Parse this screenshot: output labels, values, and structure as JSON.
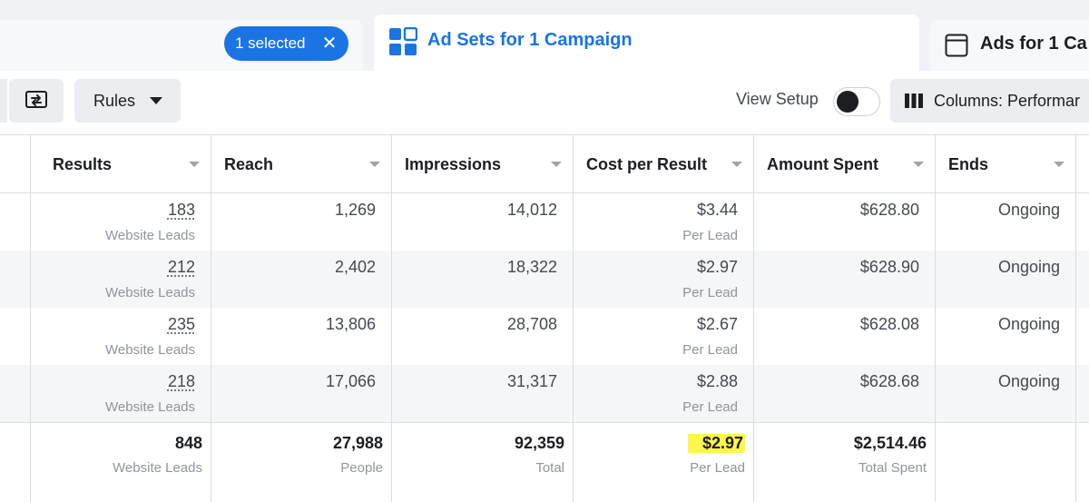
{
  "tabs": {
    "campaigns": {
      "selected_label": "1 selected"
    },
    "ad_sets": {
      "label": "Ad Sets for 1 Campaign"
    },
    "ads": {
      "label": "Ads for 1 Ca"
    }
  },
  "toolbar": {
    "rules_label": "Rules",
    "view_setup_label": "View Setup",
    "view_setup_on": false,
    "columns_label": "Columns: Performar"
  },
  "table": {
    "columns": [
      "Results",
      "Reach",
      "Impressions",
      "Cost per Result",
      "Amount Spent",
      "Ends"
    ],
    "rows": [
      {
        "results": "183",
        "results_sub": "Website Leads",
        "reach": "1,269",
        "impressions": "14,012",
        "cost": "$3.44",
        "cost_sub": "Per Lead",
        "spent": "$628.80",
        "ends": "Ongoing"
      },
      {
        "results": "212",
        "results_sub": "Website Leads",
        "reach": "2,402",
        "impressions": "18,322",
        "cost": "$2.97",
        "cost_sub": "Per Lead",
        "spent": "$628.90",
        "ends": "Ongoing"
      },
      {
        "results": "235",
        "results_sub": "Website Leads",
        "reach": "13,806",
        "impressions": "28,708",
        "cost": "$2.67",
        "cost_sub": "Per Lead",
        "spent": "$628.08",
        "ends": "Ongoing"
      },
      {
        "results": "218",
        "results_sub": "Website Leads",
        "reach": "17,066",
        "impressions": "31,317",
        "cost": "$2.88",
        "cost_sub": "Per Lead",
        "spent": "$628.68",
        "ends": "Ongoing"
      }
    ],
    "totals": {
      "results": "848",
      "results_sub": "Website Leads",
      "reach": "27,988",
      "reach_sub": "People",
      "impressions": "92,359",
      "impressions_sub": "Total",
      "cost": "$2.97",
      "cost_sub": "Per Lead",
      "spent": "$2,514.46",
      "spent_sub": "Total Spent"
    }
  },
  "colors": {
    "accent": "#1b74e4",
    "highlight": "#fff64d"
  }
}
